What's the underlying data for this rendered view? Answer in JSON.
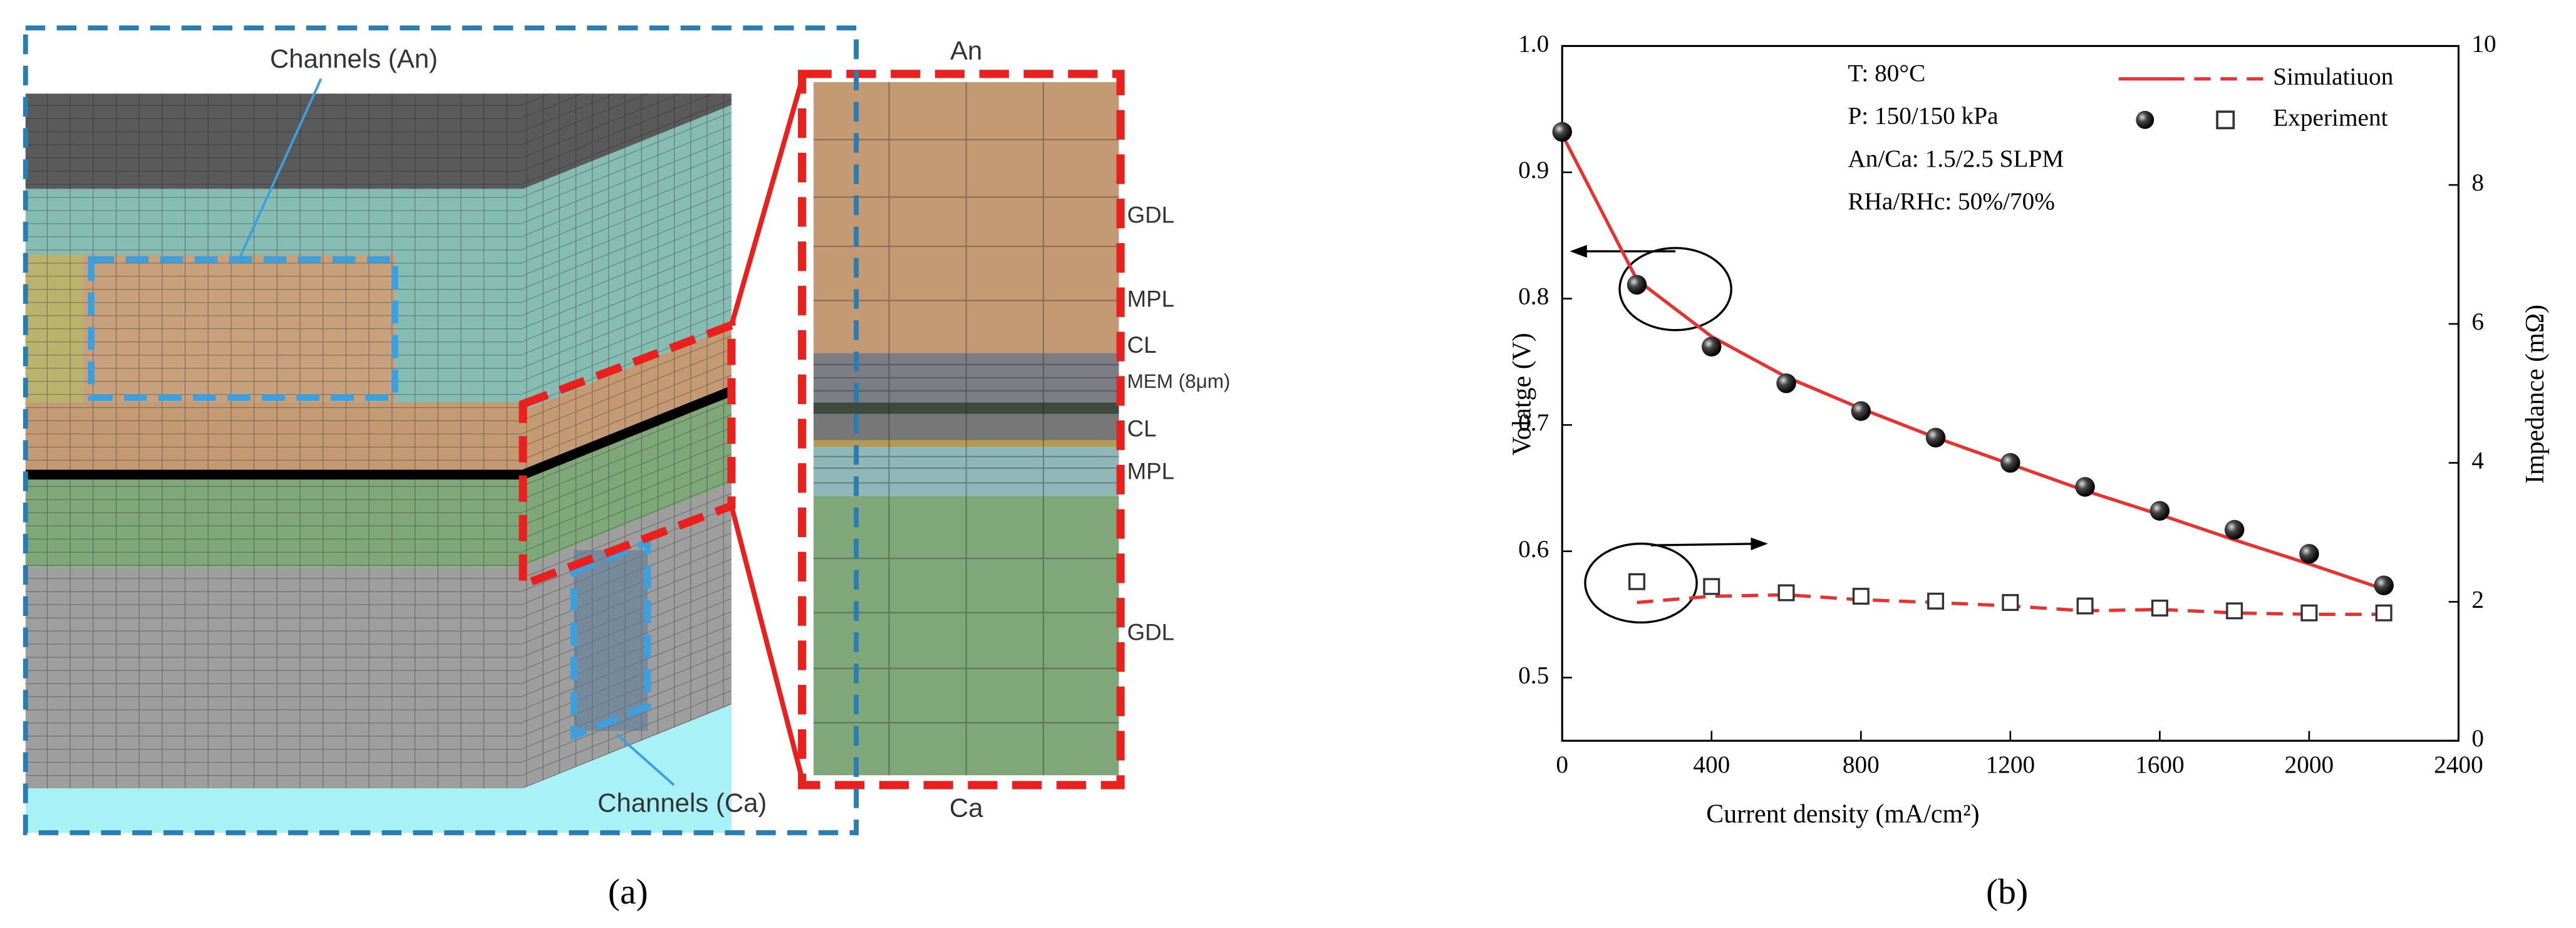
{
  "diagram": {
    "callouts": [
      "Channels (An)",
      "Channels (Ca)"
    ],
    "electrodes": [
      "An",
      "Ca"
    ],
    "layers": [
      "GDL",
      "MPL",
      "CL",
      "MEM (8μm)",
      "CL",
      "MPL",
      "GDL"
    ]
  },
  "chart_data": {
    "type": "line",
    "x_label": "Current density (mA/cm²)",
    "y_label": "Volatge (V)",
    "y2_label": "Impedance (mΩ)",
    "annotations": [
      "T: 80°C",
      "P: 150/150 kPa",
      "An/Ca: 1.5/2.5 SLPM",
      "RHa/RHc: 50%/70%"
    ],
    "x": [
      0,
      200,
      400,
      600,
      800,
      1000,
      1200,
      1400,
      1600,
      1800,
      2000,
      2200
    ],
    "series": [
      {
        "name": "Simulatiuon",
        "color": "#e8322e",
        "values": [
          0.93,
          0.815,
          0.77,
          0.738,
          0.713,
          0.69,
          0.669,
          0.648,
          0.629,
          0.609,
          0.59,
          0.57
        ],
        "y2_values": [
          null,
          1.99,
          2.08,
          2.1,
          2.03,
          1.99,
          1.94,
          1.87,
          1.89,
          1.84,
          1.82,
          1.82
        ]
      },
      {
        "name": "Experiment",
        "color": "#333333",
        "values": [
          0.932,
          0.811,
          0.762,
          0.733,
          0.711,
          0.69,
          0.67,
          0.651,
          0.632,
          0.617,
          0.598,
          0.573
        ],
        "y2_values": [
          null,
          2.29,
          2.22,
          2.13,
          2.08,
          2.01,
          1.99,
          1.94,
          1.91,
          1.87,
          1.84,
          1.84
        ]
      }
    ],
    "xlim": [
      0,
      2400
    ],
    "xticks": [
      0,
      400,
      800,
      1200,
      1600,
      2000,
      2400
    ],
    "ylim": [
      0.45,
      1.0
    ],
    "yticks": [
      0.5,
      0.6,
      0.7,
      0.8,
      0.9,
      {
        "value": 1,
        "label": "1.0"
      }
    ],
    "y2lim": [
      0,
      10
    ],
    "y2ticks": [
      0,
      2,
      4,
      6,
      8,
      10
    ]
  },
  "captions": [
    "(a)",
    "(b)"
  ]
}
